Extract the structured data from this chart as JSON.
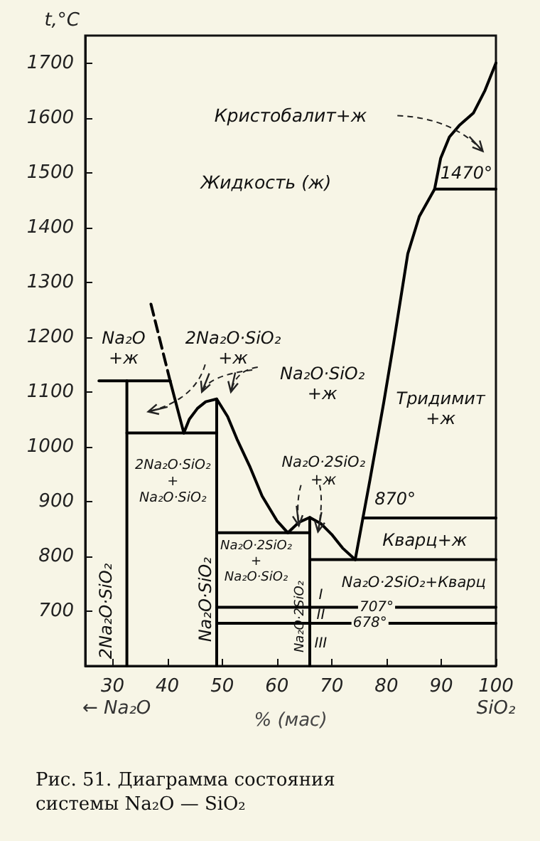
{
  "chart_data": {
    "type": "line",
    "title": "Рис. 51. Диаграмма состояния системы Na₂O — SiO₂",
    "xlabel": "% (мас)",
    "ylabel": "t,°C",
    "xlim": [
      25,
      100
    ],
    "xticks": [
      30,
      40,
      50,
      60,
      70,
      80,
      90,
      100
    ],
    "ylim": [
      600,
      1750
    ],
    "yticks": [
      700,
      800,
      900,
      1000,
      1100,
      1200,
      1300,
      1400,
      1500,
      1600,
      1700
    ],
    "marker": "none",
    "series": [
      {
        "color": "#000000",
        "x": [
          27.5,
          40.5
        ],
        "values": [
          1120,
          1120
        ]
      },
      {
        "color": "#000000",
        "line_style": "dashed",
        "x": [
          37,
          40.5
        ],
        "values": [
          1260,
          1120
        ]
      },
      {
        "color": "#000000",
        "x": [
          40.5,
          43
        ],
        "values": [
          1120,
          1025
        ]
      },
      {
        "color": "#000000",
        "x": [
          43,
          44,
          45.5,
          47,
          49,
          51,
          52.7,
          55,
          57.3,
          60,
          62
        ],
        "values": [
          1025,
          1050,
          1070,
          1082,
          1087,
          1055,
          1014,
          965,
          910,
          865,
          843
        ]
      },
      {
        "color": "#000000",
        "x": [
          62,
          64,
          66,
          68,
          70,
          72,
          74.3
        ],
        "values": [
          843,
          862,
          871,
          860,
          840,
          815,
          794
        ]
      },
      {
        "color": "#000000",
        "x": [
          74.3,
          77,
          79.5,
          81.3,
          83.9,
          86,
          88.8,
          89.9,
          91.5,
          93.3,
          95.9,
          98,
          100
        ],
        "values": [
          794,
          940,
          1080,
          1188,
          1352,
          1420,
          1470,
          1526,
          1565,
          1586,
          1609,
          1650,
          1700
        ]
      },
      {
        "color": "#000000",
        "x": [
          32.6,
          49
        ],
        "values": [
          1025,
          1025
        ]
      },
      {
        "color": "#000000",
        "x": [
          49,
          66
        ],
        "values": [
          843,
          843
        ]
      },
      {
        "color": "#000000",
        "x": [
          88.8,
          100
        ],
        "values": [
          1470,
          1470
        ]
      },
      {
        "color": "#000000",
        "x": [
          75.7,
          100
        ],
        "values": [
          870,
          870
        ]
      },
      {
        "color": "#000000",
        "x": [
          66,
          100
        ],
        "values": [
          794,
          794
        ]
      },
      {
        "color": "#000000",
        "x": [
          49,
          100
        ],
        "values": [
          707,
          707
        ]
      },
      {
        "color": "#000000",
        "x": [
          49,
          100
        ],
        "values": [
          678,
          678
        ]
      },
      {
        "color": "#000000",
        "x": [
          32.6,
          32.6
        ],
        "values": [
          600,
          1120
        ]
      },
      {
        "color": "#000000",
        "x": [
          49,
          49
        ],
        "values": [
          600,
          1087
        ]
      },
      {
        "color": "#000000",
        "x": [
          66,
          66
        ],
        "values": [
          600,
          871
        ]
      }
    ],
    "annotations": [
      "Кристобалит+ж",
      "Жидкость (ж)",
      "1470°",
      "Na₂O\n+ж",
      "2Na₂O·SiO₂\n+ж",
      "Na₂O·SiO₂\n+ж",
      "Тридимит\n+ж",
      "2Na₂O·SiO₂\n+\nNa₂O·SiO₂",
      "Na₂O·2SiO₂\n+ж",
      "870°",
      "Кварц+ж",
      "Na₂O·2SiO₂\n+\nNa₂O·SiO₂",
      "Na₂O·2SiO₂+Кварц",
      "707°",
      "678°",
      "I",
      "II",
      "III",
      "2Na₂O·SiO₂",
      "Na₂O·SiO₂",
      "Na₂O·2SiO₂",
      "← Na₂O",
      "SiO₂"
    ]
  }
}
